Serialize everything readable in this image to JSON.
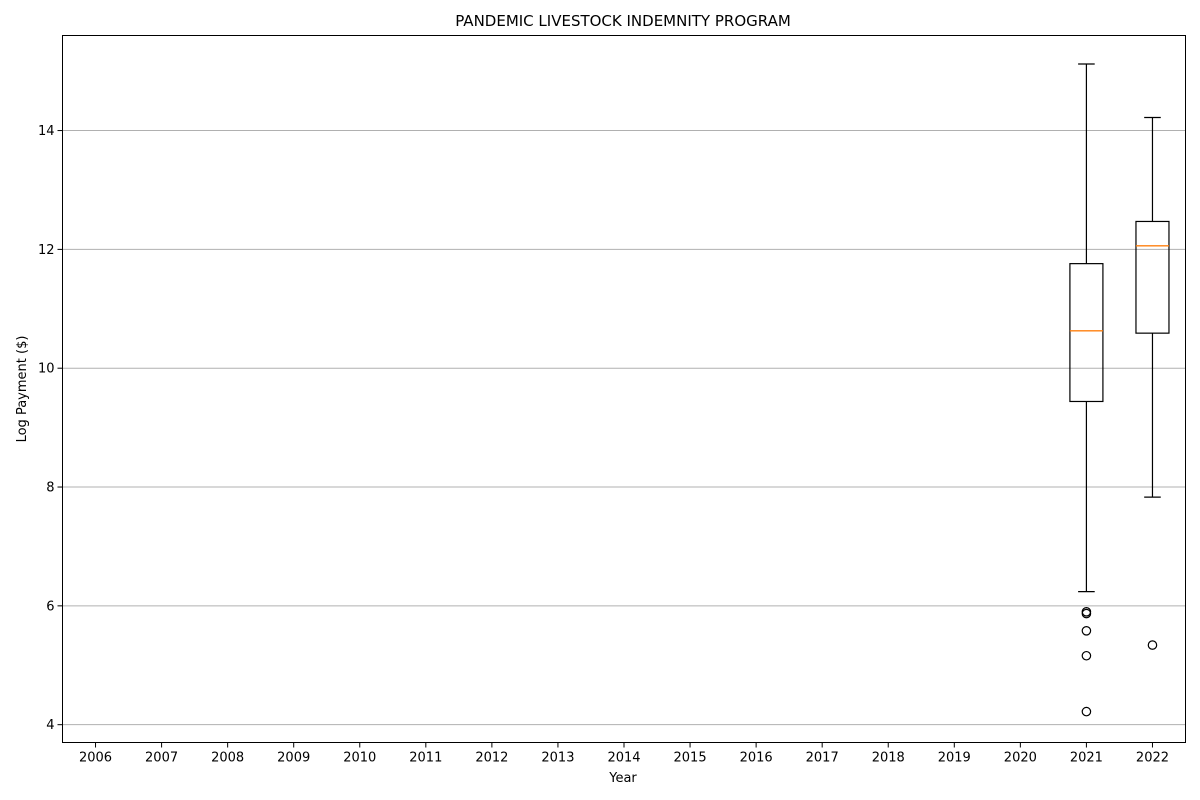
{
  "chart_data": {
    "type": "box",
    "title": "PANDEMIC LIVESTOCK INDEMNITY PROGRAM",
    "xlabel": "Year",
    "ylabel": "Log Payment ($)",
    "categories": [
      "2006",
      "2007",
      "2008",
      "2009",
      "2010",
      "2011",
      "2012",
      "2013",
      "2014",
      "2015",
      "2016",
      "2017",
      "2018",
      "2019",
      "2020",
      "2021",
      "2022"
    ],
    "ylim": [
      3.7,
      15.6
    ],
    "yticks": [
      4,
      6,
      8,
      10,
      12,
      14
    ],
    "grid": "y",
    "boxes": [
      {
        "category": "2021",
        "whisker_low": 6.24,
        "q1": 9.44,
        "median": 10.63,
        "q3": 11.76,
        "whisker_high": 15.12,
        "outliers": [
          5.9,
          5.87,
          5.58,
          5.16,
          4.22
        ]
      },
      {
        "category": "2022",
        "whisker_low": 7.83,
        "q1": 10.59,
        "median": 12.06,
        "q3": 12.47,
        "whisker_high": 14.22,
        "outliers": [
          5.34
        ]
      }
    ],
    "colors": {
      "box": "#000000",
      "median": "#ff7f0e",
      "grid": "#b0b0b0",
      "axes": "#000000"
    }
  }
}
